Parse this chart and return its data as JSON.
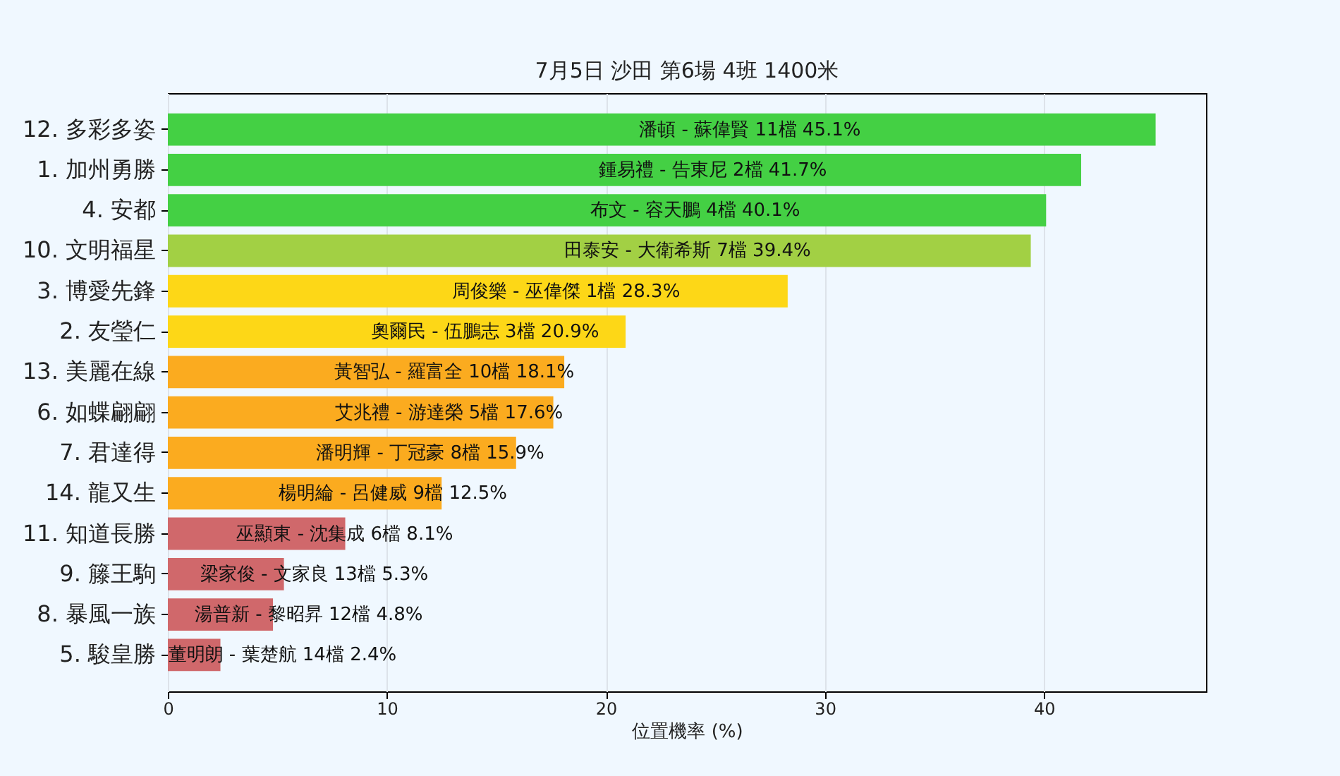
{
  "chart_data": {
    "type": "bar",
    "orientation": "horizontal",
    "title": "7月5日  沙田  第6場  4班  1400米",
    "xlabel": "位置機率 (%)",
    "categories": [
      "12. 多彩多姿",
      "1. 加州勇勝",
      "4. 安都",
      "10. 文明福星",
      "3. 博愛先鋒",
      "2. 友瑩仁",
      "13. 美麗在線",
      "6. 如蝶翩翩",
      "7. 君達得",
      "14. 龍又生",
      "11. 知道長勝",
      "9. 籐王駒",
      "8. 暴風一族",
      "5. 駿皇勝"
    ],
    "values": [
      45.1,
      41.7,
      40.1,
      39.4,
      28.3,
      20.9,
      18.1,
      17.6,
      15.9,
      12.5,
      8.1,
      5.3,
      4.8,
      2.4
    ],
    "colors": [
      "#44d044",
      "#44d044",
      "#44d044",
      "#a2d044",
      "#fdd717",
      "#fdd717",
      "#fbab1f",
      "#fbab1f",
      "#fbab1f",
      "#fbab1f",
      "#d0686b",
      "#d0686b",
      "#d0686b",
      "#d0686b"
    ],
    "value_labels": [
      "潘頓 - 蘇偉賢 11檔  45.1%",
      "鍾易禮 - 告東尼 2檔  41.7%",
      "布文 - 容天鵬 4檔  40.1%",
      "田泰安 - 大衛希斯 7檔  39.4%",
      "周俊樂 - 巫偉傑 1檔  28.3%",
      "奧爾民 - 伍鵬志 3檔  20.9%",
      "黃智弘 - 羅富全 10檔  18.1%",
      "艾兆禮 - 游達榮 5檔  17.6%",
      "潘明輝 - 丁冠豪 8檔  15.9%",
      "楊明綸 - 呂健威 9檔  12.5%",
      "巫顯東 - 沈集成 6檔  8.1%",
      "梁家俊 - 文家良 13檔  5.3%",
      "湯普新 - 黎昭昇 12檔  4.8%",
      "董明朗 - 葉楚航 14檔  2.4%"
    ],
    "xlim": [
      0,
      47.4
    ],
    "xticks": [
      0,
      10,
      20,
      30,
      40
    ],
    "grid": "x"
  }
}
